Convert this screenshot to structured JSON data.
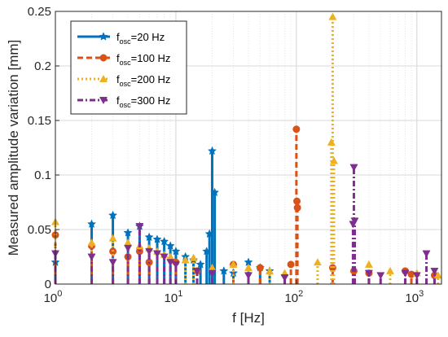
{
  "chart_data": {
    "type": "line",
    "subtype": "stem",
    "title": "",
    "xlabel": "f [Hz]",
    "ylabel": "Measured amplitude variation [mm]",
    "xscale": "log",
    "xlim": [
      1,
      1600
    ],
    "ylim": [
      0,
      0.25
    ],
    "xticks": [
      1,
      10,
      100,
      1000
    ],
    "xtick_labels": [
      {
        "base": "10",
        "exp": "0"
      },
      {
        "base": "10",
        "exp": "1"
      },
      {
        "base": "10",
        "exp": "2"
      },
      {
        "base": "10",
        "exp": "3"
      }
    ],
    "yticks": [
      0,
      0.05,
      0.1,
      0.15,
      0.2,
      0.25
    ],
    "ytick_labels": [
      "0",
      "0.05",
      "0.1",
      "0.15",
      "0.2",
      "0.25"
    ],
    "grid": true,
    "legend_position": "top-left",
    "series": [
      {
        "name": "f_osc=20 Hz",
        "legend_prefix": "f",
        "legend_sub": "osc",
        "legend_suffix": "=20 Hz",
        "color": "#0072BD",
        "linestyle": "solid",
        "marker": "star",
        "points": [
          [
            1,
            0.02
          ],
          [
            2,
            0.055
          ],
          [
            3,
            0.063
          ],
          [
            4,
            0.047
          ],
          [
            5,
            0.053
          ],
          [
            6,
            0.043
          ],
          [
            7,
            0.041
          ],
          [
            8,
            0.039
          ],
          [
            9,
            0.035
          ],
          [
            10,
            0.03
          ],
          [
            12,
            0.025
          ],
          [
            14,
            0.022
          ],
          [
            16,
            0.018
          ],
          [
            18,
            0.03
          ],
          [
            19,
            0.046
          ],
          [
            20,
            0.122
          ],
          [
            21,
            0.084
          ],
          [
            25,
            0.012
          ],
          [
            30,
            0.01
          ],
          [
            40,
            0.02
          ],
          [
            50,
            0.015
          ],
          [
            60,
            0.012
          ]
        ]
      },
      {
        "name": "f_osc=100 Hz",
        "legend_prefix": "f",
        "legend_sub": "osc",
        "legend_suffix": "=100 Hz",
        "color": "#D95319",
        "linestyle": "dashed",
        "marker": "circle",
        "points": [
          [
            1,
            0.045
          ],
          [
            2,
            0.035
          ],
          [
            3,
            0.03
          ],
          [
            4,
            0.025
          ],
          [
            5,
            0.03
          ],
          [
            6,
            0.02
          ],
          [
            10,
            0.02
          ],
          [
            15,
            0.012
          ],
          [
            30,
            0.018
          ],
          [
            50,
            0.015
          ],
          [
            90,
            0.018
          ],
          [
            100,
            0.142
          ],
          [
            101,
            0.076
          ],
          [
            102,
            0.07
          ],
          [
            200,
            0.015
          ],
          [
            300,
            0.012
          ],
          [
            400,
            0.01
          ],
          [
            800,
            0.012
          ],
          [
            900,
            0.009
          ],
          [
            1400,
            0.008
          ]
        ]
      },
      {
        "name": "f_osc=200 Hz",
        "legend_prefix": "f",
        "legend_sub": "osc",
        "legend_suffix": "=200 Hz",
        "color": "#EDB120",
        "linestyle": "dotted",
        "marker": "triangle-up",
        "points": [
          [
            1,
            0.057
          ],
          [
            2,
            0.038
          ],
          [
            3,
            0.042
          ],
          [
            4,
            0.038
          ],
          [
            5,
            0.035
          ],
          [
            6,
            0.033
          ],
          [
            7,
            0.03
          ],
          [
            8,
            0.027
          ],
          [
            9,
            0.025
          ],
          [
            12,
            0.022
          ],
          [
            14,
            0.024
          ],
          [
            20,
            0.015
          ],
          [
            30,
            0.018
          ],
          [
            40,
            0.015
          ],
          [
            60,
            0.012
          ],
          [
            80,
            0.01
          ],
          [
            150,
            0.02
          ],
          [
            195,
            0.13
          ],
          [
            200,
            0.245
          ],
          [
            205,
            0.113
          ],
          [
            400,
            0.018
          ],
          [
            600,
            0.012
          ],
          [
            1000,
            0.01
          ],
          [
            1500,
            0.008
          ]
        ]
      },
      {
        "name": "f_osc=300 Hz",
        "legend_prefix": "f",
        "legend_sub": "osc",
        "legend_suffix": "=300 Hz",
        "color": "#7E2F8E",
        "linestyle": "dashdot",
        "marker": "triangle-down",
        "points": [
          [
            1,
            0.028
          ],
          [
            2,
            0.025
          ],
          [
            3,
            0.02
          ],
          [
            4,
            0.033
          ],
          [
            5,
            0.053
          ],
          [
            6,
            0.03
          ],
          [
            7,
            0.028
          ],
          [
            8,
            0.025
          ],
          [
            9,
            0.02
          ],
          [
            10,
            0.018
          ],
          [
            15,
            0.012
          ],
          [
            20,
            0.01
          ],
          [
            40,
            0.008
          ],
          [
            80,
            0.006
          ],
          [
            295,
            0.055
          ],
          [
            300,
            0.107
          ],
          [
            305,
            0.058
          ],
          [
            400,
            0.01
          ],
          [
            500,
            0.008
          ],
          [
            800,
            0.01
          ],
          [
            1000,
            0.008
          ],
          [
            1200,
            0.028
          ],
          [
            1400,
            0.012
          ]
        ]
      }
    ]
  }
}
